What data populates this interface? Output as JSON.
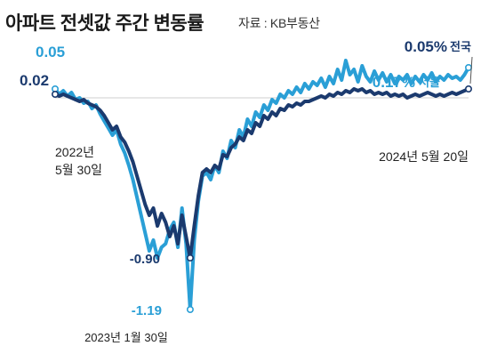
{
  "header": {
    "title": "아파트 전셋값 주간 변동률",
    "source": "자료 : KB부동산"
  },
  "chart_data": {
    "type": "line",
    "title": "아파트 전셋값 주간 변동률",
    "source": "자료 : KB부동산",
    "xlabel": "",
    "ylabel": "",
    "x_tick_labels": [
      {
        "line1": "2022년",
        "line2": "5월 30일"
      },
      {
        "line1": "2024년 5월 20일"
      }
    ],
    "x_annotation": "2023년 1월 30일",
    "colors": {
      "전국": "#1b3a6e",
      "서울": "#2a9fd6"
    },
    "series": [
      {
        "name": "전국",
        "start_label": "0.02",
        "min_label": "-0.90",
        "end_label": "0.05%",
        "end_name": "전국",
        "values": [
          0.02,
          0.01,
          0.02,
          0.01,
          0.0,
          -0.01,
          -0.02,
          -0.01,
          -0.03,
          -0.04,
          -0.05,
          -0.07,
          -0.1,
          -0.14,
          -0.18,
          -0.16,
          -0.22,
          -0.25,
          -0.3,
          -0.36,
          -0.44,
          -0.52,
          -0.6,
          -0.66,
          -0.62,
          -0.72,
          -0.65,
          -0.7,
          -0.78,
          -0.72,
          -0.82,
          -0.66,
          -0.78,
          -0.9,
          -0.72,
          -0.55,
          -0.42,
          -0.4,
          -0.42,
          -0.38,
          -0.4,
          -0.32,
          -0.33,
          -0.28,
          -0.26,
          -0.22,
          -0.24,
          -0.18,
          -0.2,
          -0.14,
          -0.16,
          -0.1,
          -0.12,
          -0.08,
          -0.1,
          -0.06,
          -0.07,
          -0.04,
          -0.05,
          -0.03,
          -0.04,
          -0.02,
          -0.02,
          -0.01,
          0.0,
          0.01,
          0.0,
          0.02,
          0.01,
          0.03,
          0.02,
          0.04,
          0.03,
          0.05,
          0.04,
          0.05,
          0.03,
          0.04,
          0.02,
          0.03,
          0.02,
          0.03,
          0.01,
          0.02,
          0.01,
          0.02,
          0.0,
          0.01,
          0.02,
          0.01,
          0.02,
          0.03,
          0.02,
          0.01,
          0.02,
          0.01,
          0.02,
          0.03,
          0.02,
          0.03,
          0.04,
          0.05
        ]
      },
      {
        "name": "서울",
        "start_label": "0.05",
        "min_label": "-1.19",
        "end_label": "0.17%",
        "end_name": "서울",
        "values": [
          0.05,
          0.02,
          0.04,
          0.01,
          0.03,
          -0.01,
          0.0,
          -0.03,
          -0.02,
          -0.06,
          -0.04,
          -0.09,
          -0.13,
          -0.17,
          -0.21,
          -0.18,
          -0.26,
          -0.31,
          -0.38,
          -0.46,
          -0.56,
          -0.66,
          -0.76,
          -0.86,
          -0.8,
          -0.9,
          -0.84,
          -0.82,
          -0.74,
          -0.7,
          -0.84,
          -0.62,
          -0.82,
          -1.19,
          -0.8,
          -0.58,
          -0.44,
          -0.42,
          -0.46,
          -0.38,
          -0.42,
          -0.3,
          -0.34,
          -0.24,
          -0.28,
          -0.18,
          -0.22,
          -0.12,
          -0.16,
          -0.08,
          -0.11,
          -0.04,
          -0.07,
          -0.01,
          -0.03,
          0.02,
          0.0,
          0.04,
          0.02,
          0.06,
          0.03,
          0.08,
          0.05,
          0.09,
          0.07,
          0.11,
          0.06,
          0.12,
          0.08,
          0.16,
          0.1,
          0.21,
          0.13,
          0.16,
          0.09,
          0.18,
          0.12,
          0.09,
          0.15,
          0.1,
          0.14,
          0.09,
          0.13,
          0.08,
          0.12,
          0.1,
          0.13,
          0.08,
          0.12,
          0.09,
          0.13,
          0.1,
          0.14,
          0.09,
          0.12,
          0.1,
          0.13,
          0.11,
          0.12,
          0.1,
          0.13,
          0.17
        ]
      }
    ],
    "ylim": [
      -1.22,
      0.25
    ],
    "grid": false,
    "baseline": 0
  }
}
